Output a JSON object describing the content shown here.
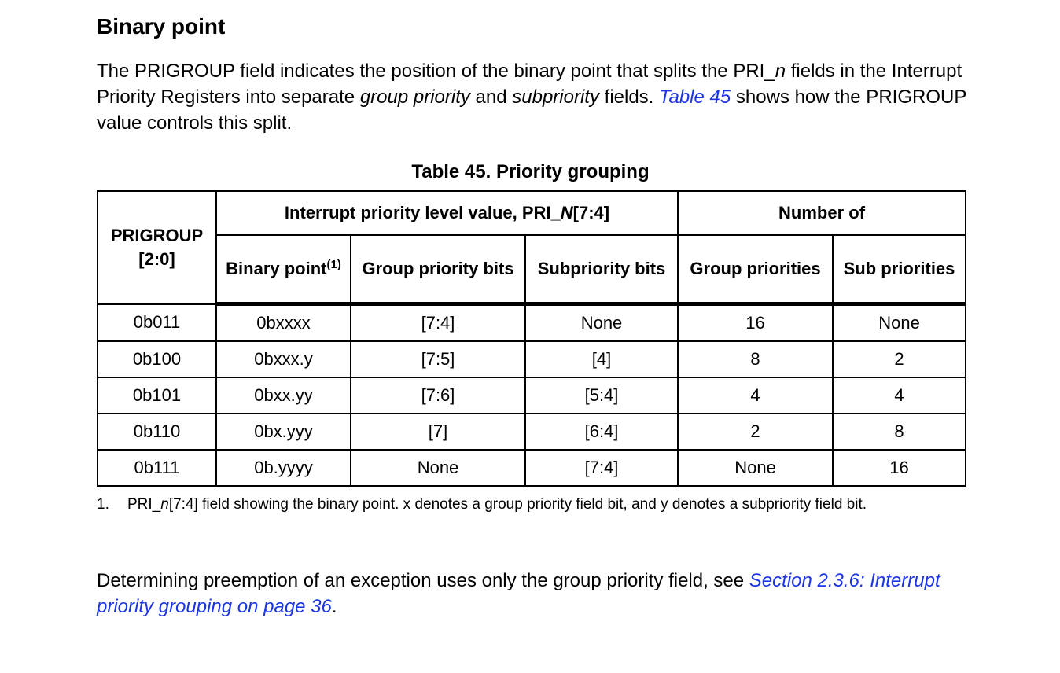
{
  "heading": "Binary point",
  "intro": {
    "text1": "The PRIGROUP field indicates the position of the binary point that splits the PRI_",
    "text1_italic": "n",
    "text2": " fields in the Interrupt Priority Registers into separate ",
    "text2_italic": "group priority",
    "text3": " and ",
    "text3_italic": "subpriority",
    "text4": " fields. ",
    "link": "Table 45",
    "text5": " shows how the PRIGROUP value controls this split."
  },
  "table": {
    "caption": "Table 45. Priority grouping",
    "header": {
      "prigroup": "PRIGROUP [2:0]",
      "level_group_prefix": "Interrupt priority level value, PRI_",
      "level_group_italic": "N",
      "level_group_suffix": "[7:4]",
      "number_of": "Number of",
      "binary_point": "Binary point",
      "binary_point_footnote": "(1)",
      "group_priority_bits": "Group priority bits",
      "subpriority_bits": "Subpriority bits",
      "group_priorities": "Group priorities",
      "sub_priorities": "Sub priorities"
    },
    "rows": [
      [
        "0b011",
        "0bxxxx",
        "[7:4]",
        "None",
        "16",
        "None"
      ],
      [
        "0b100",
        "0bxxx.y",
        "[7:5]",
        "[4]",
        "8",
        "2"
      ],
      [
        "0b101",
        "0bxx.yy",
        "[7:6]",
        "[5:4]",
        "4",
        "4"
      ],
      [
        "0b110",
        "0bx.yyy",
        "[7]",
        "[6:4]",
        "2",
        "8"
      ],
      [
        "0b111",
        "0b.yyyy",
        "None",
        "[7:4]",
        "None",
        "16"
      ]
    ]
  },
  "footnote": {
    "number": "1.",
    "prefix": "PRI_",
    "italic": "n",
    "text": "[7:4] field showing the binary point. x denotes a group priority field bit, and y denotes a subpriority field bit."
  },
  "closing": {
    "text": "Determining preemption of an exception uses only the group priority field, see ",
    "link": "Section 2.3.6: Interrupt priority grouping on page 36",
    "end": "."
  }
}
